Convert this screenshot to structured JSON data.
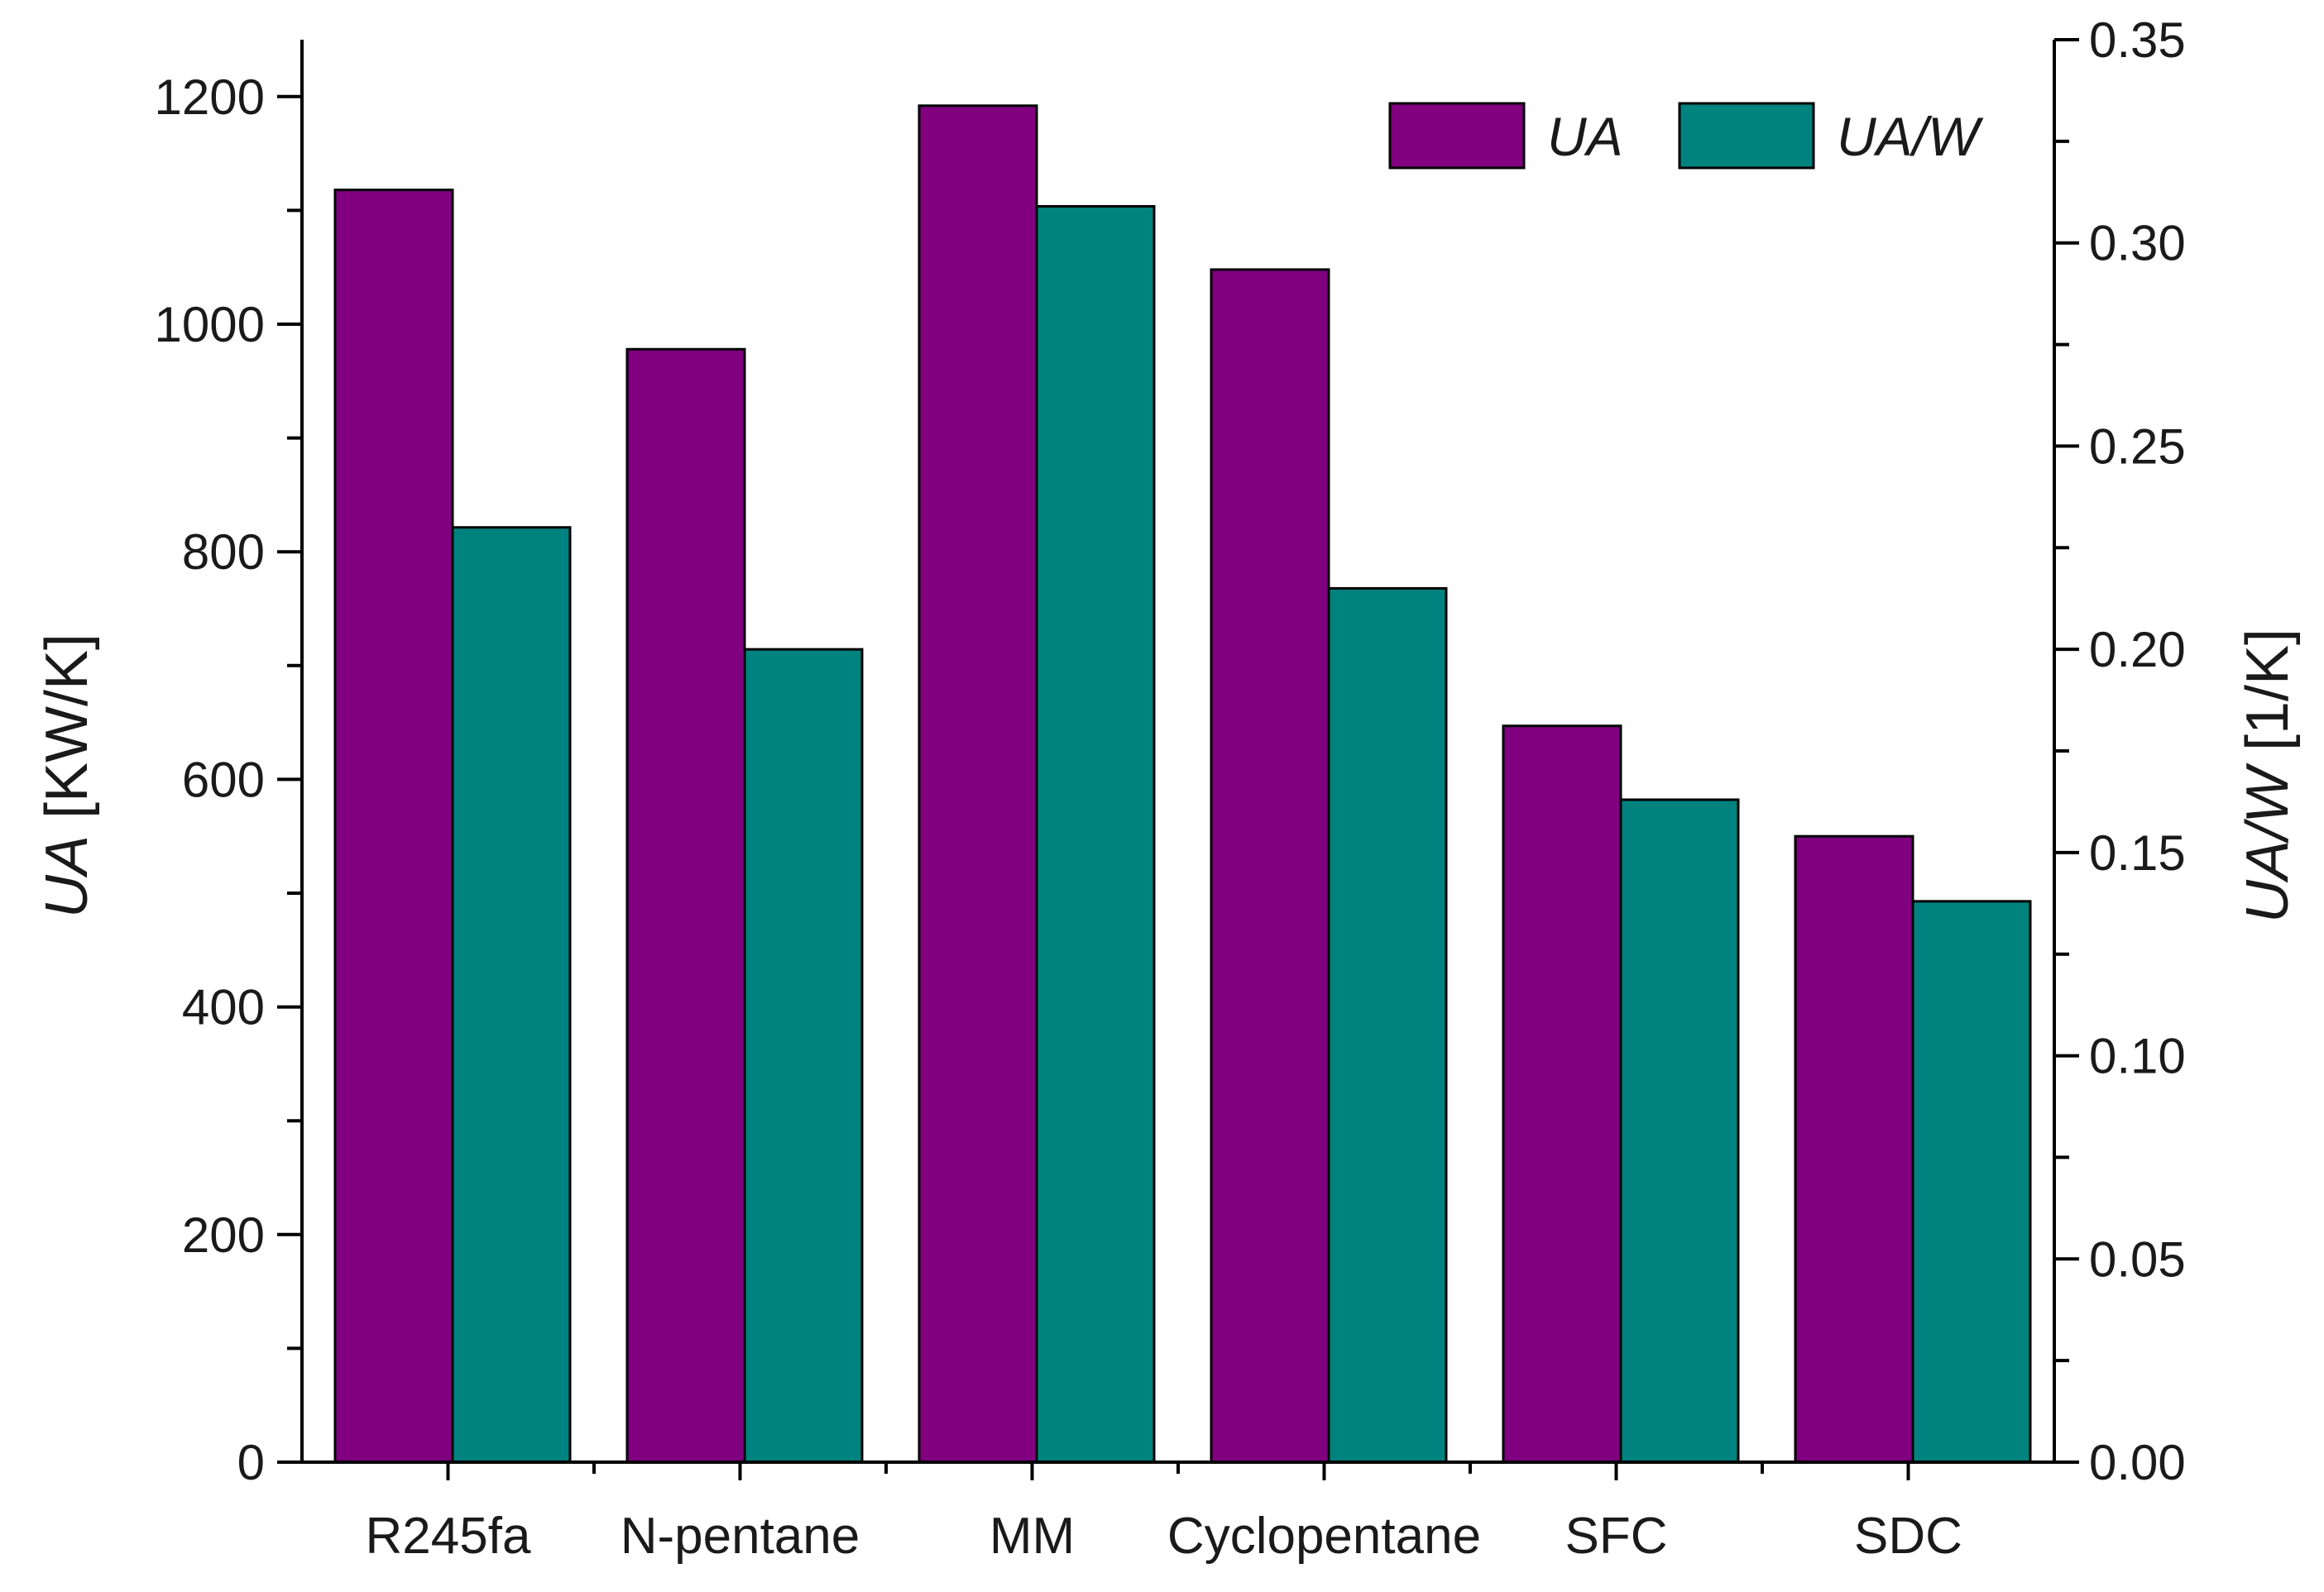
{
  "chart_data": {
    "type": "bar",
    "categories": [
      "R245fa",
      "N-pentane",
      "MM",
      "Cyclopentane",
      "SFC",
      "SDC"
    ],
    "series": [
      {
        "name": "UA",
        "axis": "left",
        "color": "#800080",
        "values": [
          1118,
          978,
          1192,
          1048,
          647,
          550
        ]
      },
      {
        "name": "UA/W",
        "axis": "right",
        "color": "#00827F",
        "values": [
          0.23,
          0.2,
          0.309,
          0.215,
          0.163,
          0.138
        ]
      }
    ],
    "ylabel_left": {
      "italic": "UA",
      "rest": " [KW/K]"
    },
    "ylabel_right": {
      "italic": "UA/W",
      "rest": " [1/K]"
    },
    "ylim_left": [
      0,
      1250
    ],
    "ylim_right": [
      0,
      0.35
    ],
    "yticks_left": [
      "0",
      "200",
      "400",
      "600",
      "800",
      "1000",
      "1200"
    ],
    "yticks_right": [
      "0.00",
      "0.05",
      "0.10",
      "0.15",
      "0.20",
      "0.25",
      "0.30",
      "0.35"
    ],
    "legend": {
      "placement": "top-right",
      "entries": [
        "UA",
        "UA/W"
      ]
    },
    "grid": false
  }
}
